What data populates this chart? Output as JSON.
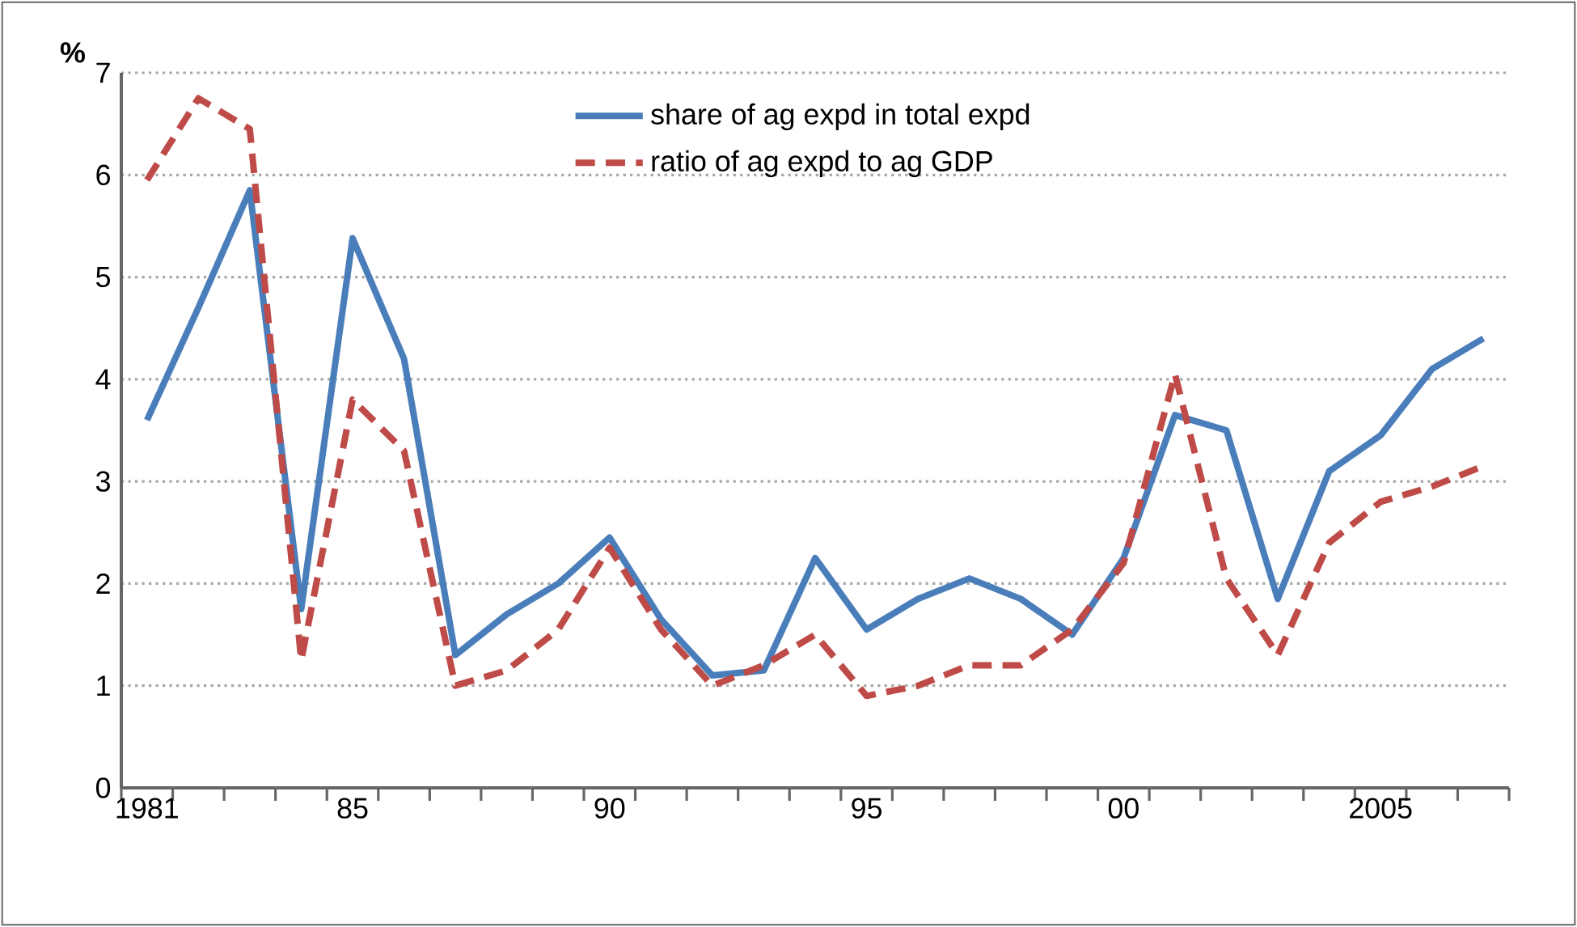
{
  "chart_data": {
    "type": "line",
    "ylabel": "%",
    "categories": [
      "1981",
      null,
      null,
      null,
      "85",
      null,
      null,
      null,
      null,
      "90",
      null,
      null,
      null,
      null,
      "95",
      null,
      null,
      null,
      null,
      "00",
      null,
      null,
      null,
      null,
      "2005",
      null,
      null
    ],
    "series": [
      {
        "name": "share of ag expd in total expd",
        "color": "#4a7ebb",
        "line_style": "solid",
        "values": [
          3.6,
          4.7,
          5.85,
          1.75,
          5.38,
          4.2,
          1.3,
          1.7,
          2.0,
          2.45,
          1.65,
          1.1,
          1.15,
          2.25,
          1.55,
          1.85,
          2.05,
          1.85,
          1.5,
          2.25,
          3.65,
          3.5,
          1.85,
          3.1,
          3.45,
          4.1,
          4.4
        ]
      },
      {
        "name": "ratio of ag expd to ag GDP",
        "color": "#be4b48",
        "line_style": "dashed",
        "values": [
          5.95,
          6.75,
          6.45,
          1.25,
          3.8,
          3.3,
          1.0,
          1.15,
          1.55,
          2.35,
          1.55,
          1.0,
          1.2,
          1.5,
          0.9,
          1.0,
          1.2,
          1.2,
          1.55,
          2.2,
          4.05,
          2.05,
          1.3,
          2.4,
          2.8,
          2.95,
          3.15
        ]
      }
    ],
    "ylim": [
      0,
      7
    ],
    "yticks": [
      0,
      1,
      2,
      3,
      4,
      5,
      6,
      7
    ],
    "grid": "y",
    "legend": "top",
    "marker": "none"
  }
}
